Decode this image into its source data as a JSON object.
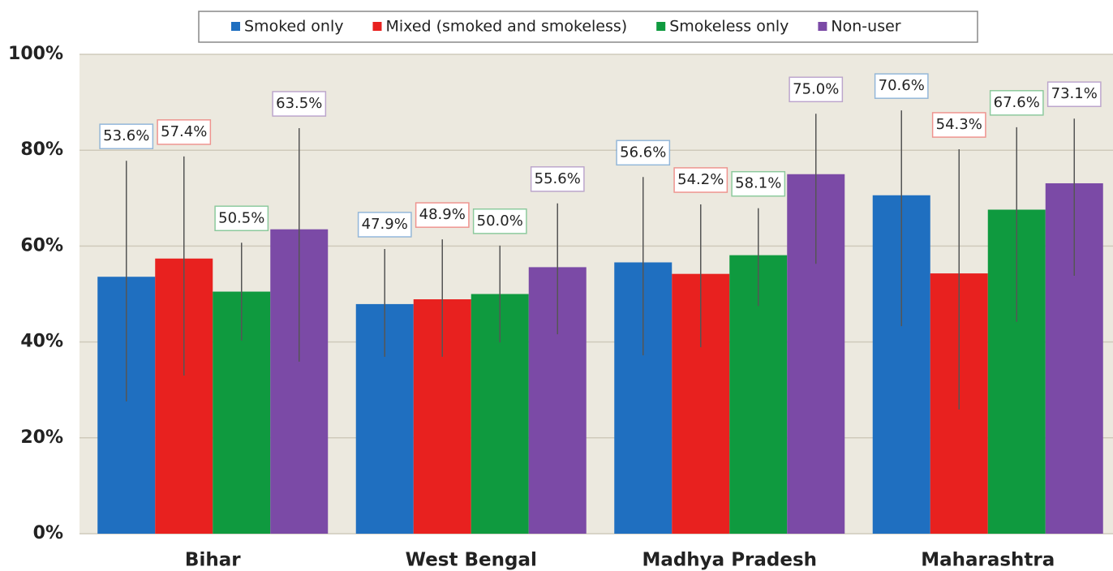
{
  "chart_data": {
    "type": "bar",
    "categories": [
      "Bihar",
      "West Bengal",
      "Madhya Pradesh",
      "Maharashtra"
    ],
    "series": [
      {
        "name": "Smoked only",
        "color": "#1f6fc0",
        "values": [
          53.6,
          47.9,
          56.6,
          70.6
        ],
        "value_labels": [
          "53.6%",
          "47.9%",
          "56.6%",
          "70.6%"
        ],
        "lower": [
          27.6,
          36.9,
          37.2,
          43.3
        ],
        "upper": [
          77.8,
          59.4,
          74.4,
          88.3
        ]
      },
      {
        "name": "Mixed (smoked and smokeless)",
        "color": "#e8211f",
        "values": [
          57.4,
          48.9,
          54.2,
          54.3
        ],
        "value_labels": [
          "57.4%",
          "48.9%",
          "54.2%",
          "54.3%"
        ],
        "lower": [
          33.0,
          36.9,
          38.9,
          25.9
        ],
        "upper": [
          78.7,
          61.4,
          68.7,
          80.2
        ]
      },
      {
        "name": "Smokeless only",
        "color": "#0f9a3f",
        "values": [
          50.5,
          50.0,
          58.1,
          67.6
        ],
        "value_labels": [
          "50.5%",
          "50.0%",
          "58.1%",
          "67.6%"
        ],
        "lower": [
          40.3,
          39.9,
          47.5,
          44.2
        ],
        "upper": [
          60.7,
          60.1,
          67.9,
          84.8
        ]
      },
      {
        "name": "Non-user",
        "color": "#7b4aa6",
        "values": [
          63.5,
          55.6,
          75.0,
          73.1
        ],
        "value_labels": [
          "63.5%",
          "55.6%",
          "75.0%",
          "73.1%"
        ],
        "lower": [
          35.9,
          41.6,
          56.3,
          53.8
        ],
        "upper": [
          84.6,
          68.9,
          87.6,
          86.6
        ]
      }
    ],
    "ylim": [
      0,
      100
    ],
    "yticks": [
      {
        "value": 0,
        "label": "0%"
      },
      {
        "value": 20,
        "label": "20%"
      },
      {
        "value": 40,
        "label": "40%"
      },
      {
        "value": 60,
        "label": "60%"
      },
      {
        "value": 80,
        "label": "80%"
      },
      {
        "value": 100,
        "label": "100%"
      }
    ],
    "grid": true,
    "legend": "top"
  }
}
